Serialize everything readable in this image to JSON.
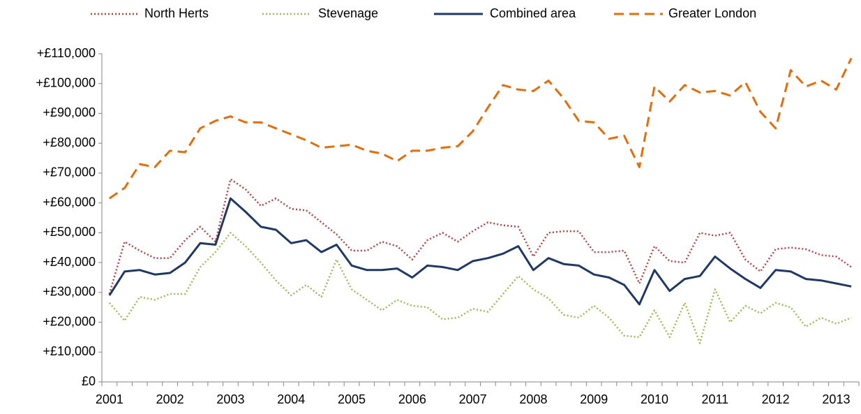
{
  "chart_data": {
    "type": "line",
    "categories": [
      "2001",
      null,
      null,
      null,
      "2002",
      null,
      null,
      null,
      "2003",
      null,
      null,
      null,
      "2004",
      null,
      null,
      null,
      "2005",
      null,
      null,
      null,
      "2006",
      null,
      null,
      null,
      "2007",
      null,
      null,
      null,
      "2008",
      null,
      null,
      null,
      "2009",
      null,
      null,
      null,
      "2010",
      null,
      null,
      null,
      "2011",
      null,
      null,
      null,
      "2012",
      null,
      null,
      null,
      "2013",
      null
    ],
    "series": [
      {
        "name": "North Herts",
        "color": "#b3423f",
        "line_style": "dotted",
        "values": [
          29500,
          47000,
          44000,
          41500,
          41500,
          47500,
          52000,
          47000,
          68000,
          64500,
          59000,
          61500,
          58000,
          57500,
          53500,
          49500,
          44000,
          44000,
          47000,
          45500,
          41000,
          47500,
          50000,
          47000,
          50500,
          53500,
          52500,
          52000,
          42000,
          50000,
          50500,
          50500,
          43500,
          43500,
          44000,
          33000,
          45500,
          40500,
          40000,
          50000,
          49000,
          50000,
          41000,
          37000,
          44500,
          45000,
          44500,
          42500,
          42000,
          38500
        ]
      },
      {
        "name": "Stevenage",
        "color": "#9bbb59",
        "line_style": "dotted",
        "values": [
          26500,
          20500,
          28500,
          27500,
          29500,
          29500,
          38500,
          43500,
          50000,
          45500,
          40000,
          34000,
          29000,
          32500,
          28500,
          41000,
          31000,
          27500,
          24000,
          27500,
          25500,
          25000,
          21000,
          21500,
          24500,
          23500,
          29500,
          35500,
          31000,
          28000,
          22500,
          21500,
          25500,
          21500,
          15500,
          15000,
          24000,
          15000,
          26500,
          13000,
          31000,
          20000,
          25500,
          23000,
          26500,
          25000,
          18500,
          21500,
          19500,
          21500
        ]
      },
      {
        "name": "Combined area",
        "color": "#1f3864",
        "line_style": "solid",
        "values": [
          29000,
          37000,
          37500,
          36000,
          36500,
          40000,
          46500,
          46000,
          61500,
          57000,
          52000,
          51000,
          46500,
          47500,
          43500,
          46000,
          39000,
          37500,
          37500,
          38000,
          35000,
          39000,
          38500,
          37500,
          40500,
          41500,
          43000,
          45500,
          37500,
          41500,
          39500,
          39000,
          36000,
          35000,
          32500,
          26000,
          37500,
          30500,
          34500,
          35500,
          42000,
          38000,
          34500,
          31500,
          37500,
          37000,
          34500,
          34000,
          33000,
          32000
        ]
      },
      {
        "name": "Greater London",
        "color": "#e46c0a",
        "line_style": "dashed",
        "values": [
          61500,
          65000,
          73000,
          72000,
          77500,
          77000,
          85000,
          87500,
          89000,
          87000,
          87000,
          85000,
          83000,
          81000,
          78500,
          79000,
          79500,
          77500,
          76500,
          74000,
          77500,
          77500,
          78500,
          79000,
          84000,
          92000,
          99500,
          98000,
          97500,
          101000,
          95000,
          87500,
          87000,
          81500,
          82500,
          72000,
          99000,
          94000,
          99500,
          97000,
          97500,
          96000,
          100500,
          90500,
          85000,
          104500,
          99000,
          101000,
          98000,
          108500
        ]
      }
    ],
    "ylim": [
      0,
      110000
    ],
    "yticks": [
      {
        "value": 0,
        "label": "£0"
      },
      {
        "value": 10000,
        "label": "+£10,000"
      },
      {
        "value": 20000,
        "label": "+£20,000"
      },
      {
        "value": 30000,
        "label": "+£30,000"
      },
      {
        "value": 40000,
        "label": "+£40,000"
      },
      {
        "value": 50000,
        "label": "+£50,000"
      },
      {
        "value": 60000,
        "label": "+£60,000"
      },
      {
        "value": 70000,
        "label": "+£70,000"
      },
      {
        "value": 80000,
        "label": "+£80,000"
      },
      {
        "value": 90000,
        "label": "+£90,000"
      },
      {
        "value": 100000,
        "label": "+£100,000"
      },
      {
        "value": 110000,
        "label": "+£110,000"
      }
    ],
    "grid": false,
    "legend": "top"
  }
}
